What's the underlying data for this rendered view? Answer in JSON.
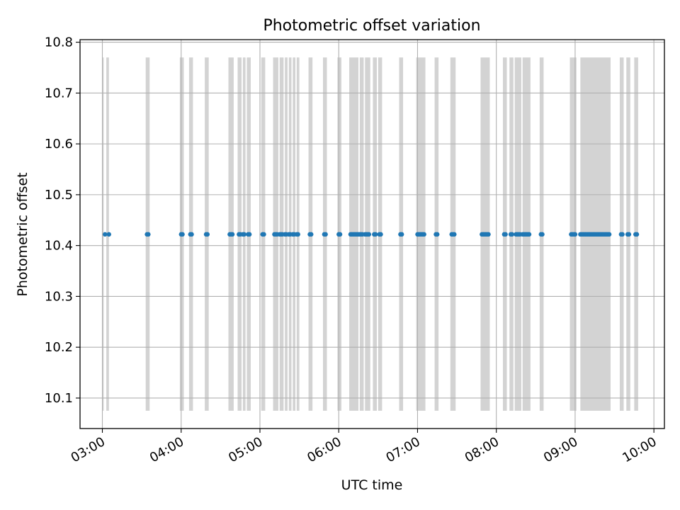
{
  "chart_data": {
    "type": "scatter",
    "title": "Photometric offset variation",
    "xlabel": "UTC time",
    "ylabel": "Photometric offset",
    "x_ticks": [
      "03:00",
      "04:00",
      "05:00",
      "06:00",
      "07:00",
      "08:00",
      "09:00",
      "10:00"
    ],
    "y_ticks": [
      "10.1",
      "10.2",
      "10.3",
      "10.4",
      "10.5",
      "10.6",
      "10.7",
      "10.8"
    ],
    "xlim": [
      "02:43",
      "10:08"
    ],
    "ylim": [
      10.04,
      10.805
    ],
    "grid": true,
    "point_color": "#1f77b4",
    "band_color": "#d3d3d3",
    "band_y_range": [
      10.075,
      10.77
    ],
    "points": {
      "y": 10.422,
      "x": [
        "03:02",
        "03:05",
        "03:34",
        "03:35",
        "04:00",
        "04:01",
        "04:07",
        "04:08",
        "04:19",
        "04:20",
        "04:37",
        "04:38",
        "04:39",
        "04:44",
        "04:45",
        "04:47",
        "04:48",
        "04:51",
        "04:52",
        "05:02",
        "05:03",
        "05:11",
        "05:12",
        "05:13",
        "05:15",
        "05:16",
        "05:17",
        "05:19",
        "05:20",
        "05:22",
        "05:23",
        "05:25",
        "05:26",
        "05:28",
        "05:29",
        "05:38",
        "05:39",
        "05:49",
        "05:50",
        "06:00",
        "06:01",
        "06:09",
        "06:10",
        "06:11",
        "06:12",
        "06:13",
        "06:14",
        "06:15",
        "06:16",
        "06:17",
        "06:18",
        "06:20",
        "06:21",
        "06:22",
        "06:23",
        "06:27",
        "06:28",
        "06:31",
        "06:32",
        "06:47",
        "06:48",
        "07:00",
        "07:01",
        "07:02",
        "07:03",
        "07:04",
        "07:05",
        "07:14",
        "07:15",
        "07:26",
        "07:27",
        "07:28",
        "07:49",
        "07:50",
        "07:51",
        "07:52",
        "07:53",
        "07:54",
        "08:06",
        "08:07",
        "08:11",
        "08:12",
        "08:15",
        "08:16",
        "08:17",
        "08:18",
        "08:20",
        "08:21",
        "08:22",
        "08:23",
        "08:24",
        "08:25",
        "08:34",
        "08:35",
        "08:57",
        "08:58",
        "08:59",
        "09:00",
        "09:04",
        "09:05",
        "09:06",
        "09:07",
        "09:08",
        "09:09",
        "09:10",
        "09:11",
        "09:12",
        "09:13",
        "09:14",
        "09:15",
        "09:16",
        "09:17",
        "09:18",
        "09:19",
        "09:20",
        "09:21",
        "09:22",
        "09:23",
        "09:24",
        "09:25",
        "09:26",
        "09:35",
        "09:36",
        "09:40",
        "09:41",
        "09:46",
        "09:47"
      ]
    },
    "bands": [
      [
        "03:00",
        "03:01"
      ],
      [
        "03:03",
        "03:05"
      ],
      [
        "03:33",
        "03:36"
      ],
      [
        "03:59",
        "04:02"
      ],
      [
        "04:06",
        "04:09"
      ],
      [
        "04:18",
        "04:21"
      ],
      [
        "04:36",
        "04:40"
      ],
      [
        "04:43",
        "04:46"
      ],
      [
        "04:47",
        "04:49"
      ],
      [
        "04:50",
        "04:53"
      ],
      [
        "05:01",
        "05:04"
      ],
      [
        "05:10",
        "05:14"
      ],
      [
        "05:15",
        "05:18"
      ],
      [
        "05:19",
        "05:21"
      ],
      [
        "05:22",
        "05:24"
      ],
      [
        "05:25",
        "05:27"
      ],
      [
        "05:28",
        "05:30"
      ],
      [
        "05:37",
        "05:40"
      ],
      [
        "05:48",
        "05:51"
      ],
      [
        "05:59",
        "06:02"
      ],
      [
        "06:08",
        "06:15"
      ],
      [
        "06:16",
        "06:19"
      ],
      [
        "06:20",
        "06:24"
      ],
      [
        "06:26",
        "06:29"
      ],
      [
        "06:30",
        "06:33"
      ],
      [
        "06:46",
        "06:49"
      ],
      [
        "06:59",
        "07:06"
      ],
      [
        "07:13",
        "07:16"
      ],
      [
        "07:25",
        "07:29"
      ],
      [
        "07:48",
        "07:55"
      ],
      [
        "08:05",
        "08:08"
      ],
      [
        "08:10",
        "08:13"
      ],
      [
        "08:14",
        "08:19"
      ],
      [
        "08:20",
        "08:26"
      ],
      [
        "08:33",
        "08:36"
      ],
      [
        "08:56",
        "09:01"
      ],
      [
        "09:04",
        "09:27"
      ],
      [
        "09:34",
        "09:37"
      ],
      [
        "09:39",
        "09:42"
      ],
      [
        "09:45",
        "09:48"
      ]
    ]
  }
}
